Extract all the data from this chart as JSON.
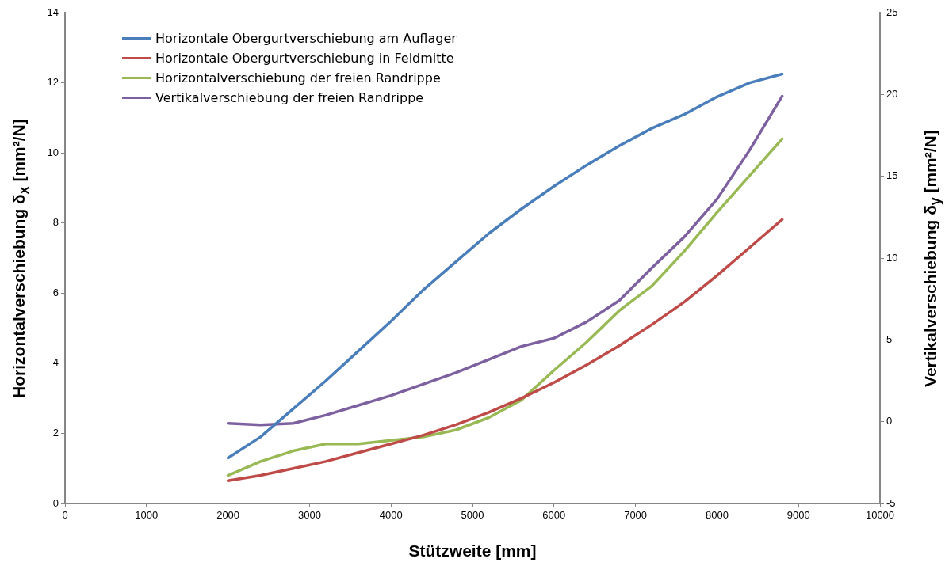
{
  "chart_data": {
    "type": "line",
    "xlabel": "Stützweite [mm]",
    "ylabel": "Horizontalverschiebung  δ$_{x}$ [mm²/N]",
    "y2label": "Vertikalverschiebung δ$_{y}$ [mm²/N]",
    "x": [
      2000,
      2400,
      2800,
      3200,
      3600,
      4000,
      4400,
      4800,
      5200,
      5600,
      6000,
      6400,
      6800,
      7200,
      7600,
      8000,
      8400,
      8800
    ],
    "series": [
      {
        "name": "Horizontale Obergurtverschiebung am Auflager",
        "color": "#4a7ebb",
        "values": [
          1.3,
          1.9,
          2.7,
          3.5,
          4.35,
          5.2,
          6.1,
          6.9,
          7.7,
          8.4,
          9.05,
          9.65,
          10.2,
          10.7,
          11.1,
          11.6,
          12.0,
          12.25
        ]
      },
      {
        "name": "Horizontale Obergurtverschiebung in Feldmitte",
        "color": "#be4b48",
        "values": [
          0.65,
          0.8,
          1.0,
          1.2,
          1.45,
          1.7,
          1.95,
          2.25,
          2.6,
          3.0,
          3.45,
          3.95,
          4.5,
          5.1,
          5.75,
          6.5,
          7.3,
          8.1
        ]
      },
      {
        "name": "Horizontalverschiebung der freien Randrippe",
        "color": "#98b954",
        "values": [
          0.8,
          1.2,
          1.5,
          1.7,
          1.7,
          1.8,
          1.9,
          2.1,
          2.45,
          2.95,
          3.8,
          4.6,
          5.5,
          6.2,
          7.2,
          8.3,
          9.35,
          10.4
        ]
      },
      {
        "name": "Vertikalverschiebung der freien Randrippe",
        "color": "#7d60a0",
        "axis": "y2",
        "values": [
          -0.1,
          -0.2,
          -0.1,
          0.4,
          1.0,
          1.6,
          2.3,
          3.0,
          3.8,
          4.6,
          5.1,
          6.1,
          7.4,
          9.4,
          11.3,
          13.6,
          16.6,
          19.9
        ]
      }
    ],
    "xlim": [
      0,
      10000
    ],
    "xticks": [
      0,
      1000,
      2000,
      3000,
      4000,
      5000,
      6000,
      7000,
      8000,
      9000,
      10000
    ],
    "ylim": [
      0,
      14
    ],
    "yticks": [
      0,
      2,
      4,
      6,
      8,
      10,
      12,
      14
    ],
    "y2lim": [
      -5,
      25
    ],
    "y2ticks": [
      -5,
      0,
      5,
      10,
      15,
      20,
      25
    ],
    "legend": "top left",
    "grid": false,
    "marker": "none",
    "line_style": "solid"
  }
}
